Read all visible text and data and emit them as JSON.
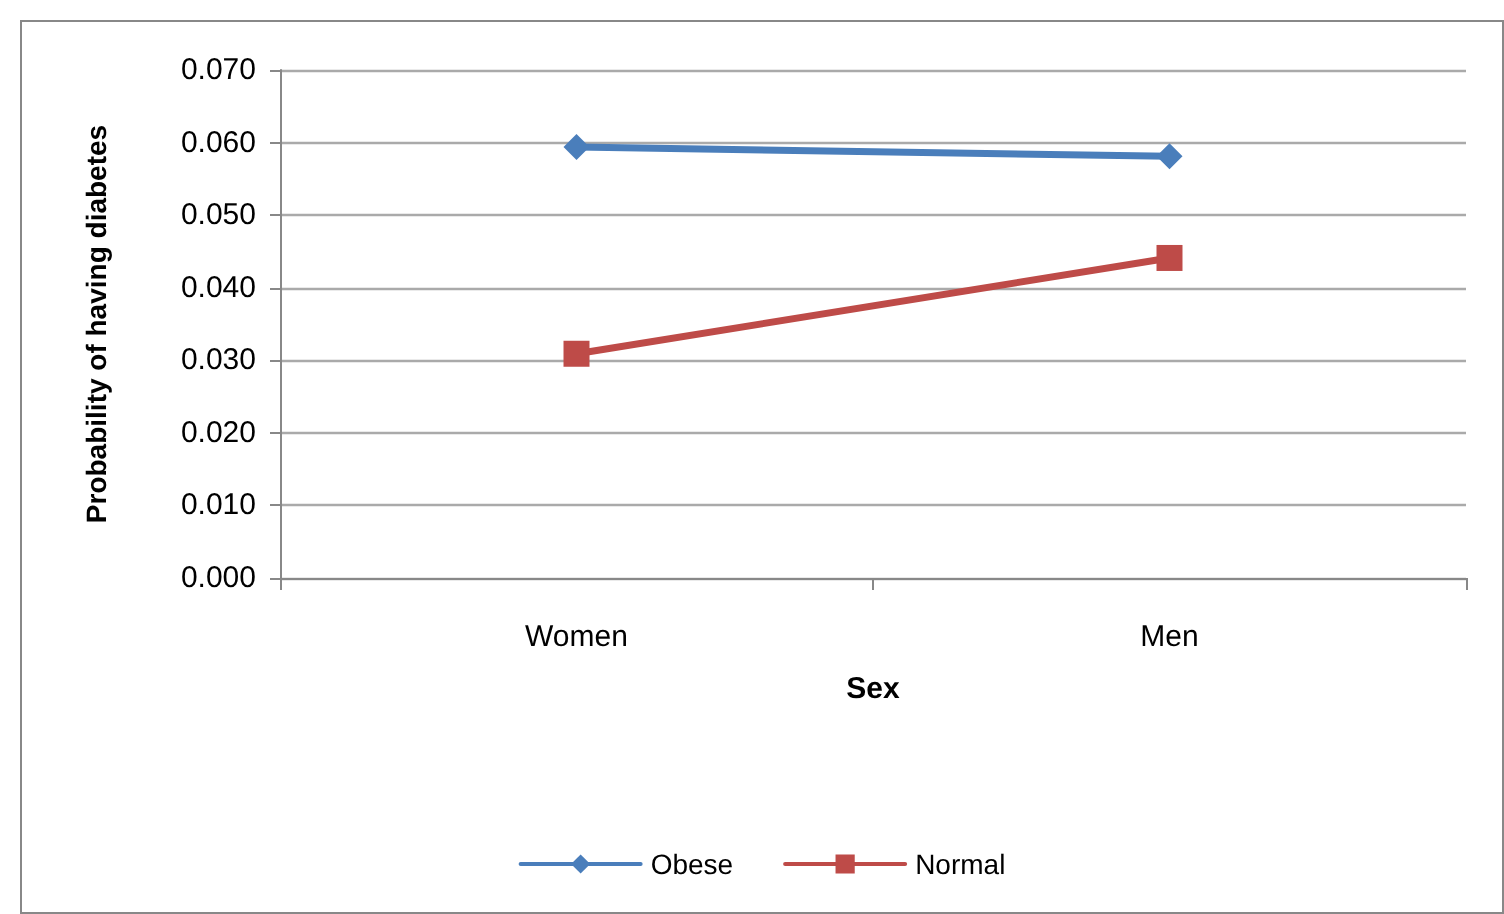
{
  "chart_data": {
    "type": "line",
    "xlabel": "Sex",
    "ylabel": "Probability of having diabetes",
    "categories": [
      "Women",
      "Men"
    ],
    "series": [
      {
        "name": "Obese",
        "color": "#4a7ebb",
        "values": [
          0.0594,
          0.0581
        ],
        "marker": "diamond"
      },
      {
        "name": "Normal",
        "color": "#be4b48",
        "values": [
          0.0309,
          0.0441
        ],
        "marker": "square"
      }
    ],
    "ylim": [
      0,
      0.07
    ],
    "yticks": [
      {
        "value": 0,
        "label": "0.000"
      },
      {
        "value": 0.01,
        "label": "0.010"
      },
      {
        "value": 0.02,
        "label": "0.020"
      },
      {
        "value": 0.03,
        "label": "0.030"
      },
      {
        "value": 0.04,
        "label": "0.040"
      },
      {
        "value": 0.05,
        "label": "0.050"
      },
      {
        "value": 0.06,
        "label": "0.060"
      },
      {
        "value": 0.07,
        "label": "0.070"
      }
    ],
    "grid": "y",
    "legend": "bottom"
  }
}
